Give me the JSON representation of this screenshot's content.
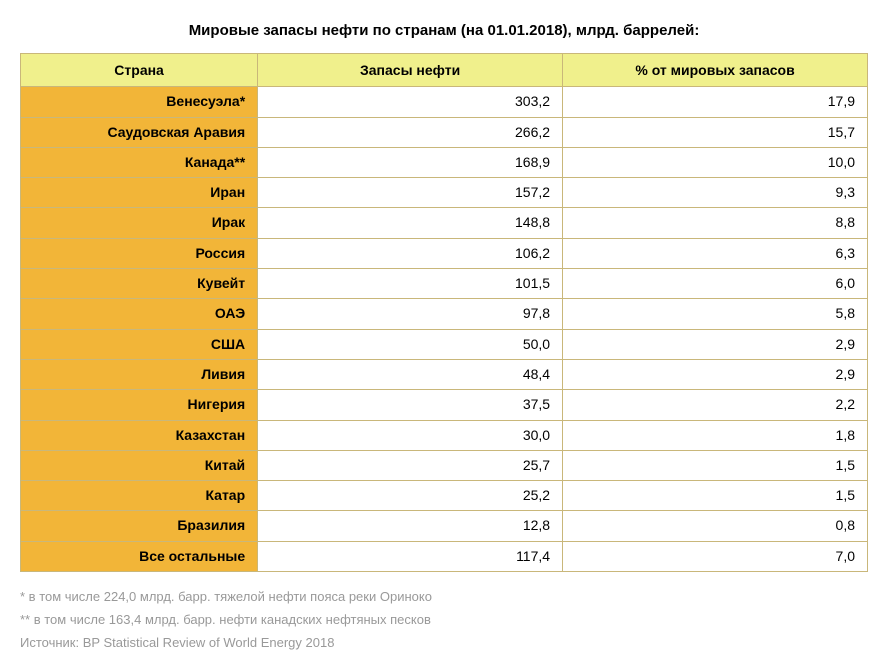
{
  "title": "Мировые запасы нефти по странам (на 01.01.2018), млрд. баррелей:",
  "table": {
    "type": "table",
    "header_bg": "#f0f08c",
    "country_bg": "#f2b538",
    "border_color": "#c9b77a",
    "text_color": "#000000",
    "font_size": 14,
    "columns": [
      {
        "label": "Страна",
        "align": "center",
        "width_pct": 28
      },
      {
        "label": "Запасы нефти",
        "align": "right",
        "width_pct": 36
      },
      {
        "label": "% от мировых запасов",
        "align": "right",
        "width_pct": 36
      }
    ],
    "rows": [
      {
        "country": "Венесуэла*",
        "reserves": "303,2",
        "pct": "17,9"
      },
      {
        "country": "Саудовская Аравия",
        "reserves": "266,2",
        "pct": "15,7"
      },
      {
        "country": "Канада**",
        "reserves": "168,9",
        "pct": "10,0"
      },
      {
        "country": "Иран",
        "reserves": "157,2",
        "pct": "9,3"
      },
      {
        "country": "Ирак",
        "reserves": "148,8",
        "pct": "8,8"
      },
      {
        "country": "Россия",
        "reserves": "106,2",
        "pct": "6,3"
      },
      {
        "country": "Кувейт",
        "reserves": "101,5",
        "pct": "6,0"
      },
      {
        "country": "ОАЭ",
        "reserves": "97,8",
        "pct": "5,8"
      },
      {
        "country": "США",
        "reserves": "50,0",
        "pct": "2,9"
      },
      {
        "country": "Ливия",
        "reserves": "48,4",
        "pct": "2,9"
      },
      {
        "country": "Нигерия",
        "reserves": "37,5",
        "pct": "2,2"
      },
      {
        "country": "Казахстан",
        "reserves": "30,0",
        "pct": "1,8"
      },
      {
        "country": "Китай",
        "reserves": "25,7",
        "pct": "1,5"
      },
      {
        "country": "Катар",
        "reserves": "25,2",
        "pct": "1,5"
      },
      {
        "country": "Бразилия",
        "reserves": "12,8",
        "pct": "0,8"
      },
      {
        "country": "Все остальные",
        "reserves": "117,4",
        "pct": "7,0"
      }
    ]
  },
  "footnotes": {
    "color": "#999999",
    "font_size": 13,
    "lines": [
      "* в том числе 224,0 млрд. барр. тяжелой нефти пояса реки Ориноко",
      "** в том числе 163,4 млрд. барр. нефти канадских нефтяных песков",
      "Источник: BP Statistical Review of World Energy 2018"
    ]
  }
}
